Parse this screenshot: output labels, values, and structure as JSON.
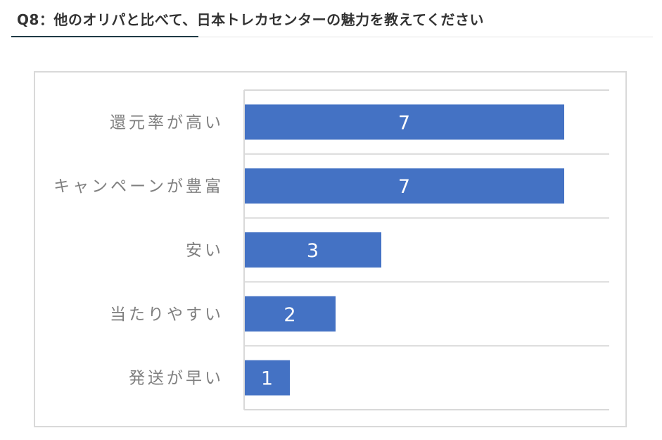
{
  "header": {
    "title": "Q8：他のオリパと比べて、日本トレカセンターの魅力を教えてください"
  },
  "chart_data": {
    "type": "bar",
    "orientation": "horizontal",
    "title": "",
    "xlabel": "",
    "ylabel": "",
    "categories": [
      "還元率が高い",
      "キャンペーンが豊富",
      "安い",
      "当たりやすい",
      "発送が早い"
    ],
    "values": [
      7,
      7,
      3,
      2,
      1
    ],
    "value_labels": [
      "7",
      "7",
      "3",
      "2",
      "1"
    ],
    "xlim": [
      0,
      8
    ],
    "grid": true,
    "legend": "none",
    "bar_color": "#4472C4"
  }
}
